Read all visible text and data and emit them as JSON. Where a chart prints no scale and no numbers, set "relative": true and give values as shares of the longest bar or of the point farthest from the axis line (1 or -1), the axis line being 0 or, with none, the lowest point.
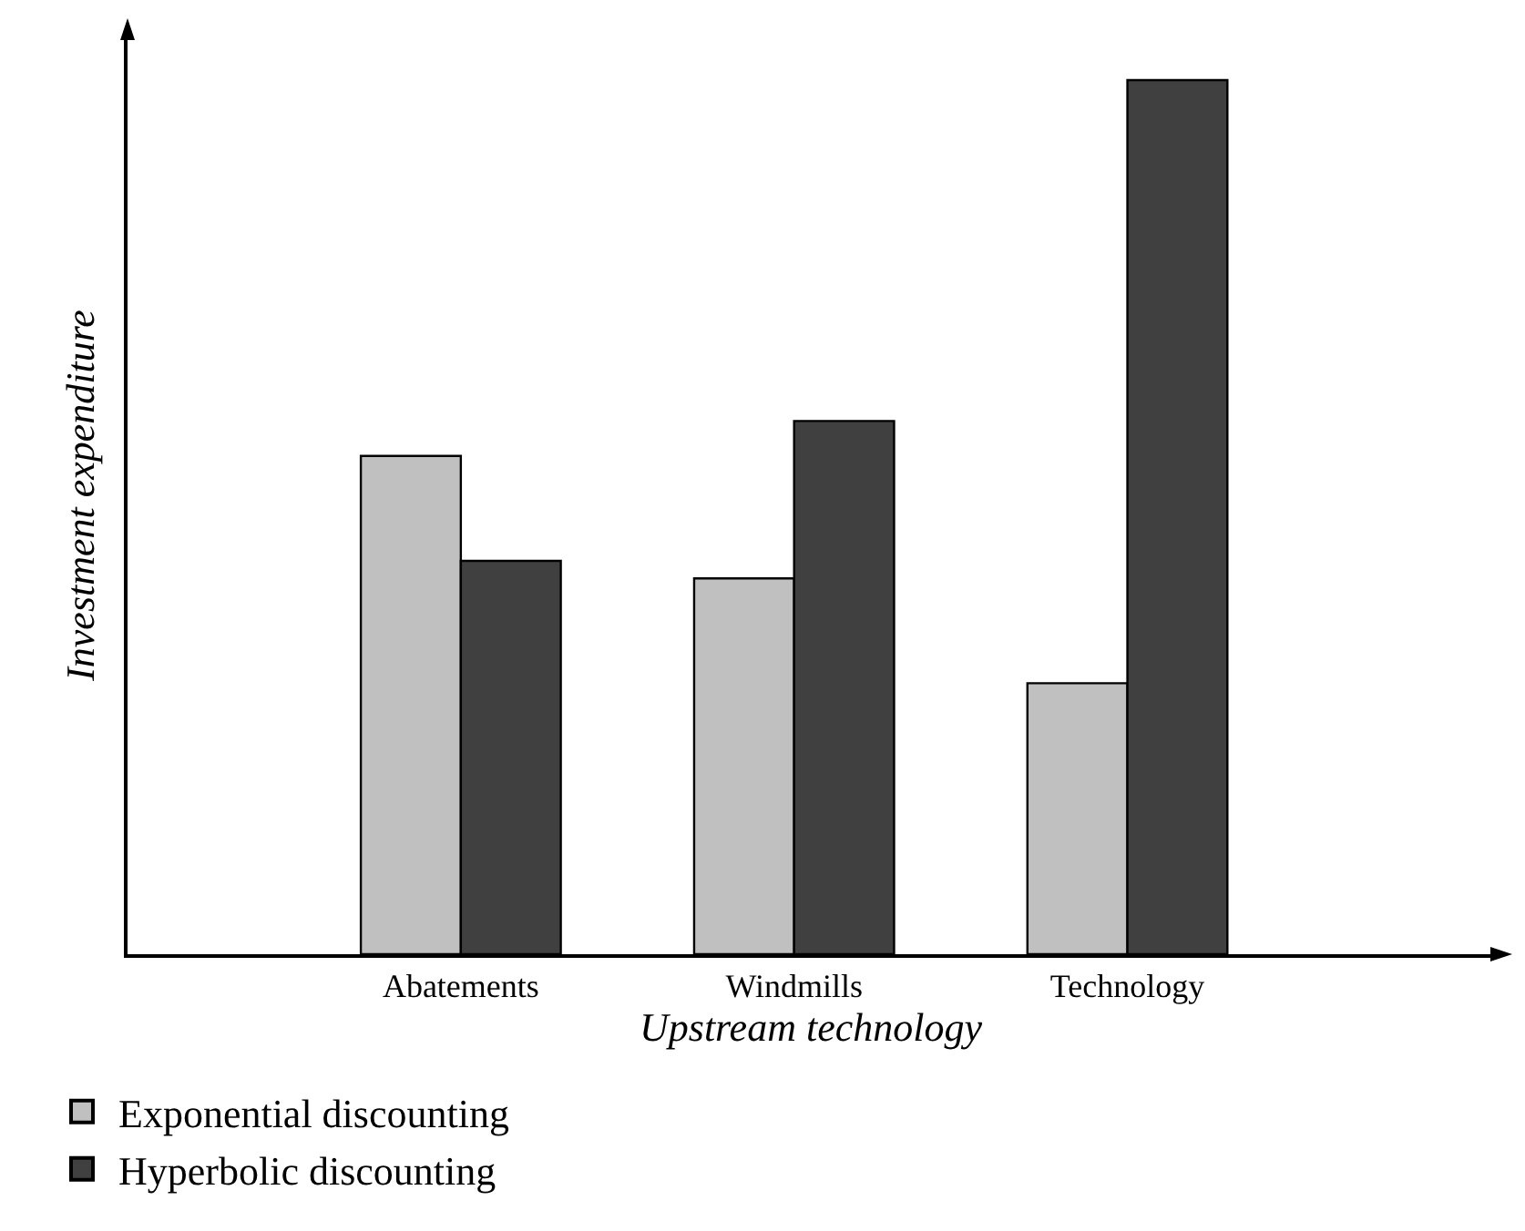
{
  "chart_data": {
    "type": "bar",
    "relative": true,
    "xlabel": "Upstream technology",
    "ylabel": "Investment expenditure",
    "categories": [
      "Abatements",
      "Windmills",
      "Technology"
    ],
    "series": [
      {
        "name": "Exponential discounting",
        "color": "#c0c0c0",
        "values": [
          0.57,
          0.43,
          0.31
        ]
      },
      {
        "name": "Hyperbolic discounting",
        "color": "#404040",
        "values": [
          0.45,
          0.61,
          1
        ]
      }
    ],
    "grid": false,
    "legend": "bottom"
  }
}
